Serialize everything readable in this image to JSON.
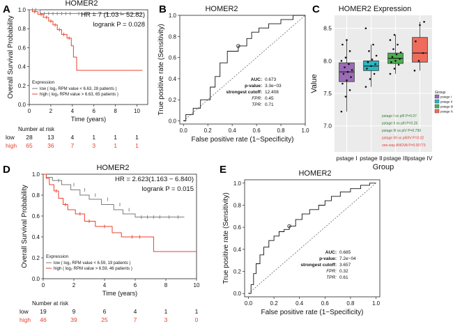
{
  "colors": {
    "low": "#7a7a7a",
    "high": "#e8412c",
    "axis": "#222222",
    "diag": "#666666",
    "green": "#2e7d32",
    "red": "#e53935"
  },
  "chart_data": [
    {
      "panel": "A",
      "type": "line",
      "title": "HOMER2",
      "xlabel": "Time (years)",
      "ylabel": "Overall Survival Probability",
      "xlim": [
        0,
        11
      ],
      "ylim": [
        0,
        1
      ],
      "xticks": [
        "0",
        "2",
        "4",
        "6",
        "8",
        "10"
      ],
      "yticks": [
        "0.0",
        "0.2",
        "0.4",
        "0.6",
        "0.8",
        "1.0"
      ],
      "hr_text": "HR = 7 (1.03 − 52.82)",
      "logrank_text": "logrank P = 0.028",
      "legend_title": "Expression",
      "legend": [
        "low  ( log₂ RPM value < 6.63, 28 patients )",
        "high ( log₂ RPM value > 6.63, 65 patients )"
      ],
      "series": [
        {
          "name": "low",
          "x": [
            0,
            1.0,
            1.0,
            10.5
          ],
          "y": [
            1.0,
            1.0,
            0.96,
            0.96
          ],
          "censor_x": [
            0.3,
            0.6,
            1.4,
            1.8,
            2.2,
            2.6,
            3.0,
            3.4,
            3.8,
            4.6,
            5.2,
            6.0,
            7.2,
            8.5
          ],
          "censor_y": [
            1.0,
            1.0,
            0.96,
            0.96,
            0.96,
            0.96,
            0.96,
            0.96,
            0.96,
            0.96,
            0.96,
            0.96,
            0.96,
            0.96
          ]
        },
        {
          "name": "high",
          "x": [
            0,
            0.3,
            0.3,
            0.8,
            0.8,
            1.3,
            1.3,
            1.8,
            1.8,
            2.2,
            2.2,
            2.6,
            2.6,
            3.0,
            3.0,
            3.5,
            3.5,
            3.9,
            3.9,
            4.1,
            4.1,
            4.4,
            4.4,
            10.5
          ],
          "y": [
            1.0,
            1.0,
            0.98,
            0.98,
            0.95,
            0.95,
            0.92,
            0.92,
            0.88,
            0.88,
            0.84,
            0.84,
            0.79,
            0.79,
            0.74,
            0.74,
            0.7,
            0.7,
            0.62,
            0.62,
            0.5,
            0.5,
            0.36,
            0.36
          ],
          "censor_x": [
            0.5,
            1.1,
            1.6,
            2.0,
            2.4,
            2.8,
            3.2,
            3.7
          ],
          "censor_y": [
            0.98,
            0.95,
            0.92,
            0.88,
            0.84,
            0.79,
            0.74,
            0.7
          ]
        }
      ],
      "risk_title": "Number at risk",
      "risk": [
        {
          "name": "low",
          "values": [
            "28",
            "13",
            "4",
            "1",
            "1",
            "1"
          ]
        },
        {
          "name": "high",
          "values": [
            "65",
            "36",
            "7",
            "3",
            "1",
            "1"
          ]
        }
      ]
    },
    {
      "panel": "B",
      "type": "line",
      "title": "HOMER2",
      "xlabel": "False positive rate (1−Specificity)",
      "ylabel": "True positive rate (Sensitivity)",
      "xlim": [
        -0.03,
        1.0
      ],
      "ylim": [
        -0.03,
        1.0
      ],
      "xticks": [
        "0.0",
        "0.2",
        "0.4",
        "0.6",
        "0.8",
        "1.0"
      ],
      "yticks": [
        "0.0",
        "0.2",
        "0.4",
        "0.6",
        "0.8",
        "1.0"
      ],
      "series": [
        {
          "name": "ROC",
          "x": [
            0,
            0.02,
            0.02,
            0.08,
            0.08,
            0.14,
            0.14,
            0.22,
            0.22,
            0.26,
            0.26,
            0.3,
            0.3,
            0.36,
            0.36,
            0.45,
            0.45,
            0.52,
            0.52,
            0.56,
            0.56,
            0.62,
            0.62,
            0.7,
            0.7,
            0.8,
            0.8,
            0.9,
            0.9,
            1.0
          ],
          "y": [
            0,
            0,
            0.06,
            0.06,
            0.12,
            0.12,
            0.2,
            0.2,
            0.32,
            0.32,
            0.42,
            0.42,
            0.55,
            0.55,
            0.66,
            0.66,
            0.71,
            0.71,
            0.78,
            0.78,
            0.84,
            0.84,
            0.88,
            0.88,
            0.92,
            0.92,
            0.96,
            0.96,
            1.0,
            1.0
          ]
        }
      ],
      "cutoff_point": [
        0.45,
        0.71
      ],
      "stats": [
        {
          "label": "AUC:",
          "value": "0.673"
        },
        {
          "label": "p-value:",
          "value": "3.3e−03"
        },
        {
          "label": "strongest cutoff:",
          "value": "12.408"
        },
        {
          "label": "FPR:",
          "value": "0.45"
        },
        {
          "label": "TPR:",
          "value": "0.71"
        }
      ]
    },
    {
      "panel": "C",
      "type": "box",
      "title": "HOMER2 Expression",
      "xlabel": "Group",
      "ylabel": "Value",
      "ylim": [
        6.6,
        8.7
      ],
      "yticks": [
        7.0,
        7.5,
        8.0,
        8.5
      ],
      "ytick_labels": [
        "7.0",
        "7.5",
        "8.0",
        "8.5"
      ],
      "categories": [
        "pstage I",
        "pstage II",
        "pstage III",
        "pstage IV"
      ],
      "box_colors": [
        "#9b6bb6",
        "#2ab7c4",
        "#4caf50",
        "#ef6b5b"
      ],
      "boxes": [
        {
          "min": 7.22,
          "q1": 7.68,
          "median": 7.83,
          "q3": 7.97,
          "max": 8.32
        },
        {
          "min": 7.6,
          "q1": 7.85,
          "median": 7.92,
          "q3": 8.0,
          "max": 8.25
        },
        {
          "min": 7.8,
          "q1": 7.96,
          "median": 8.04,
          "q3": 8.12,
          "max": 8.4
        },
        {
          "min": 7.85,
          "q1": 7.98,
          "median": 8.12,
          "q3": 8.36,
          "max": 8.6
        }
      ],
      "points": [
        [
          7.22,
          7.45,
          7.55,
          7.65,
          7.7,
          7.75,
          7.8,
          7.83,
          7.86,
          7.9,
          7.95,
          8.0,
          8.05,
          8.15,
          8.25,
          8.32
        ],
        [
          7.6,
          7.72,
          7.8,
          7.88,
          7.92,
          7.95,
          7.98,
          8.02,
          8.08,
          8.15,
          8.25,
          8.5
        ],
        [
          7.8,
          7.88,
          7.94,
          7.98,
          8.0,
          8.03,
          8.06,
          8.1,
          8.13,
          8.18,
          8.25,
          8.32,
          8.4
        ],
        [
          7.85,
          8.0,
          8.12,
          8.3,
          8.55,
          8.6
        ]
      ],
      "legend_title": "Group",
      "legend": [
        "pstage I",
        "pstage II",
        "pstage III",
        "pstage IV"
      ],
      "annotations": [
        {
          "text": "pstage I vs pIII P=0.07",
          "color": "green"
        },
        {
          "text": "pstage II vs pIII P=0.26",
          "color": "green"
        },
        {
          "text": "pstage III vs pIV P=0.799",
          "color": "green"
        },
        {
          "text": "pstage I/II vs pIII/IV P=0.02",
          "color": "red"
        },
        {
          "text": "one-way ANOVA P=0.00773",
          "color": "red"
        }
      ]
    },
    {
      "panel": "D",
      "type": "line",
      "title": "HOMER2",
      "xlabel": "Time (years)",
      "ylabel": "Overall Survival Probability",
      "xlim": [
        0,
        10
      ],
      "ylim": [
        0,
        1
      ],
      "xticks": [
        "0",
        "2",
        "4",
        "6",
        "8",
        "10"
      ],
      "yticks": [
        "0.0",
        "0.2",
        "0.4",
        "0.6",
        "0.8",
        "1.0"
      ],
      "hr_text": "HR = 2.623(1.163 − 6.840)",
      "logrank_text": "logrank P = 0.015",
      "legend_title": "Expression",
      "legend": [
        "low  ( log₂ RPM value < 6.59, 19 patients )",
        "high ( log₂ RPM value > 6.59, 46 patients )"
      ],
      "series": [
        {
          "name": "low",
          "x": [
            0,
            0.2,
            0.2,
            0.6,
            0.6,
            1.2,
            1.2,
            1.8,
            1.8,
            2.4,
            2.4,
            3.0,
            3.0,
            3.8,
            3.8,
            4.6,
            4.6,
            5.2,
            5.2,
            6.0,
            6.0,
            9.2
          ],
          "y": [
            1.0,
            1.0,
            0.97,
            0.97,
            0.94,
            0.94,
            0.9,
            0.9,
            0.85,
            0.85,
            0.8,
            0.8,
            0.76,
            0.76,
            0.71,
            0.71,
            0.66,
            0.66,
            0.62,
            0.62,
            0.59,
            0.59
          ],
          "censor_x": [
            1.0,
            2.0,
            2.7,
            3.4,
            4.2,
            5.0,
            5.6,
            6.4,
            6.8,
            7.2,
            7.6,
            8.2,
            8.8
          ],
          "censor_y": [
            0.94,
            0.9,
            0.85,
            0.8,
            0.76,
            0.71,
            0.66,
            0.59,
            0.59,
            0.59,
            0.59,
            0.59,
            0.59
          ]
        },
        {
          "name": "high",
          "x": [
            0,
            0.2,
            0.2,
            0.4,
            0.4,
            0.7,
            0.7,
            1.0,
            1.0,
            1.3,
            1.3,
            1.6,
            1.6,
            2.1,
            2.1,
            2.7,
            2.7,
            3.4,
            3.4,
            4.5,
            4.5,
            5.1,
            5.1,
            7.2,
            7.2,
            10.0
          ],
          "y": [
            1.0,
            1.0,
            0.96,
            0.96,
            0.9,
            0.9,
            0.84,
            0.84,
            0.77,
            0.77,
            0.71,
            0.71,
            0.66,
            0.66,
            0.62,
            0.62,
            0.55,
            0.55,
            0.5,
            0.5,
            0.44,
            0.44,
            0.4,
            0.4,
            0.26,
            0.26
          ],
          "censor_x": [
            0.85,
            1.45,
            2.4,
            3.0,
            4.0,
            5.8,
            6.3
          ],
          "censor_y": [
            0.84,
            0.71,
            0.62,
            0.55,
            0.5,
            0.4,
            0.4
          ]
        }
      ],
      "risk_title": "Number at risk",
      "risk": [
        {
          "name": "low",
          "values": [
            "19",
            "9",
            "6",
            "4",
            "1",
            "1"
          ]
        },
        {
          "name": "high",
          "values": [
            "46",
            "39",
            "25",
            "7",
            "3",
            "0"
          ]
        }
      ]
    },
    {
      "panel": "E",
      "type": "line",
      "title": "HOMER2",
      "xlabel": "False positive rate (1−Specificity)",
      "ylabel": "True positive rate (Sensitivity)",
      "xlim": [
        -0.03,
        1.03
      ],
      "ylim": [
        -0.03,
        1.03
      ],
      "xticks": [
        "0.0",
        "0.2",
        "0.4",
        "0.6",
        "0.8",
        "1.0"
      ],
      "yticks": [
        "0.0",
        "0.2",
        "0.4",
        "0.6",
        "0.8",
        "1.0"
      ],
      "series": [
        {
          "name": "ROC",
          "x": [
            0,
            0.02,
            0.02,
            0.04,
            0.04,
            0.06,
            0.06,
            0.09,
            0.09,
            0.12,
            0.12,
            0.16,
            0.16,
            0.2,
            0.2,
            0.24,
            0.24,
            0.28,
            0.28,
            0.32,
            0.32,
            0.37,
            0.37,
            0.42,
            0.42,
            0.48,
            0.48,
            0.55,
            0.55,
            0.6,
            0.6,
            0.65,
            0.65,
            0.72,
            0.72,
            0.8,
            0.8,
            0.88,
            0.88,
            0.95,
            0.95,
            1.0
          ],
          "y": [
            0,
            0,
            0.08,
            0.08,
            0.18,
            0.18,
            0.27,
            0.27,
            0.35,
            0.35,
            0.42,
            0.42,
            0.48,
            0.48,
            0.52,
            0.52,
            0.56,
            0.56,
            0.58,
            0.58,
            0.61,
            0.61,
            0.67,
            0.67,
            0.72,
            0.72,
            0.76,
            0.76,
            0.8,
            0.8,
            0.84,
            0.84,
            0.88,
            0.88,
            0.92,
            0.92,
            0.95,
            0.95,
            0.98,
            0.98,
            1.0,
            1.0
          ]
        }
      ],
      "cutoff_point": [
        0.32,
        0.61
      ],
      "stats": [
        {
          "label": "AUC:",
          "value": "0.685"
        },
        {
          "label": "p-value:",
          "value": "7.2e−04"
        },
        {
          "label": "strongest cutoff:",
          "value": "3.657"
        },
        {
          "label": "FPR:",
          "value": "0.32"
        },
        {
          "label": "TPR:",
          "value": "0.61"
        }
      ]
    }
  ]
}
